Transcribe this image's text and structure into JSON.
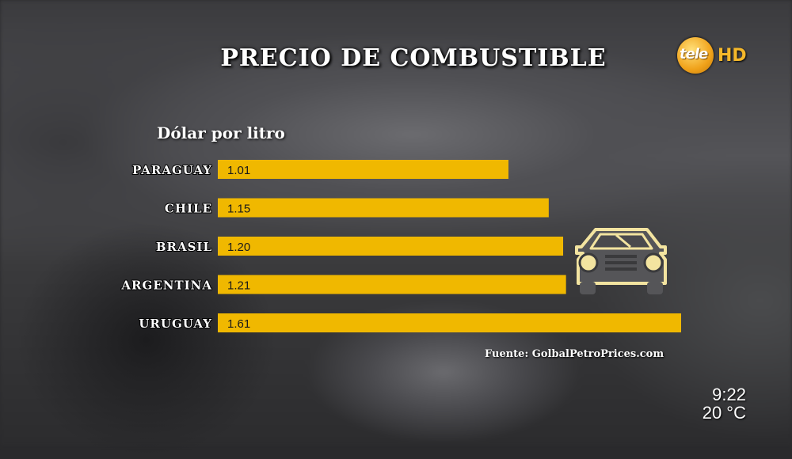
{
  "title": "PRECIO DE COMBUSTIBLE",
  "logo": {
    "text": "tele",
    "suffix": "HD"
  },
  "source": "Fuente: GolbalPetroPrices.com",
  "clock": {
    "time": "9:22",
    "temperature": "20 °C"
  },
  "colors": {
    "bar": "#f0b800",
    "bar_text": "#1a1a1a",
    "label": "#ffffff"
  },
  "icons": [
    "car-icon",
    "tele-hd-logo"
  ],
  "chart_data": {
    "type": "bar",
    "orientation": "horizontal",
    "title": "PRECIO DE COMBUSTIBLE",
    "subtitle": "Dólar por litro",
    "categories": [
      "PARAGUAY",
      "CHILE",
      "BRASIL",
      "ARGENTINA",
      "URUGUAY"
    ],
    "values": [
      1.01,
      1.15,
      1.2,
      1.21,
      1.61
    ],
    "value_labels": [
      "1.01",
      "1.15",
      "1.20",
      "1.21",
      "1.61"
    ],
    "xlim": [
      0,
      1.61
    ],
    "grid": false,
    "legend": "none"
  }
}
